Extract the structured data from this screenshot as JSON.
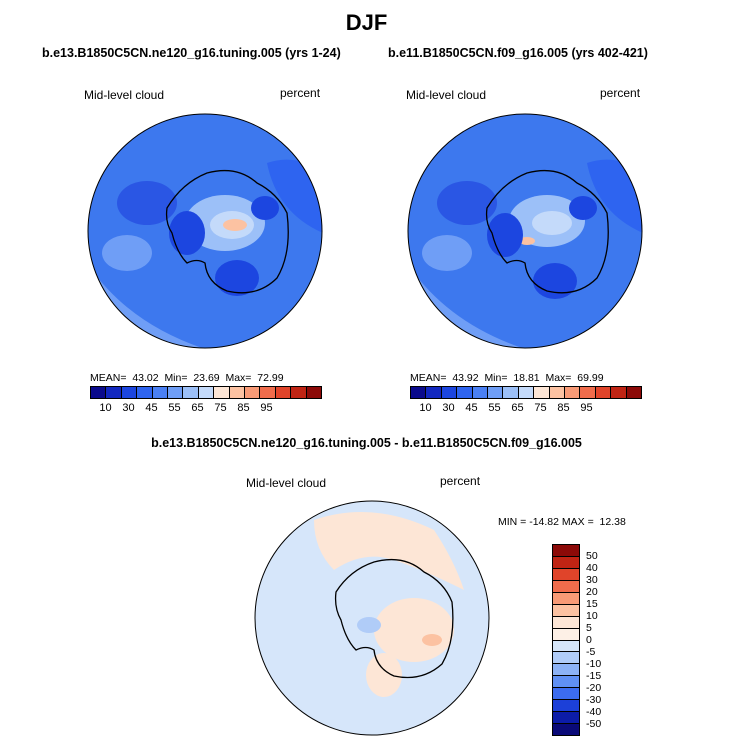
{
  "title": "DJF",
  "panels": {
    "left": {
      "case": "b.e13.B1850C5CN.ne120_g16.tuning.005 (yrs 1-24)",
      "variable": "Mid-level cloud",
      "units": "percent",
      "mean_label": "MEAN=",
      "mean": "43.02",
      "min_label": "Min=",
      "min": "23.69",
      "max_label": "Max=",
      "max": "72.99"
    },
    "right": {
      "case": "b.e11.B1850C5CN.f09_g16.005 (yrs 402-421)",
      "variable": "Mid-level cloud",
      "units": "percent",
      "mean_label": "MEAN=",
      "mean": "43.92",
      "min_label": "Min=",
      "min": "18.81",
      "max_label": "Max=",
      "max": "69.99"
    },
    "diff": {
      "case": "b.e13.B1850C5CN.ne120_g16.tuning.005 - b.e11.B1850C5CN.f09_g16.005",
      "variable": "Mid-level cloud",
      "units": "percent",
      "minmax": "MIN = -14.82 MAX =  12.38"
    }
  },
  "colorbar_main": {
    "ticks": [
      "10",
      "30",
      "45",
      "55",
      "65",
      "75",
      "85",
      "95"
    ],
    "colors": [
      "#0a0a8c",
      "#1228c0",
      "#1c46e0",
      "#2e64f0",
      "#4a80f4",
      "#6f9ef6",
      "#9cc0f8",
      "#c4dafa",
      "#fde6d6",
      "#fcc2a2",
      "#f89a76",
      "#f06c4c",
      "#e0442a",
      "#c02414",
      "#8c0a08"
    ]
  },
  "colorbar_diff": {
    "ticks": [
      "50",
      "40",
      "30",
      "20",
      "15",
      "10",
      "5",
      "0",
      "-5",
      "-10",
      "-15",
      "-20",
      "-30",
      "-40",
      "-50"
    ],
    "colors": [
      "#8c0a08",
      "#c02414",
      "#e0442a",
      "#f06c4c",
      "#f89a76",
      "#fcc2a2",
      "#fde6d6",
      "#fdf0e6",
      "#d6e6fa",
      "#b0ccf8",
      "#8cb2f6",
      "#6090f4",
      "#3c6cf0",
      "#1c40d8",
      "#0c1ca8",
      "#0a0a78"
    ]
  }
}
